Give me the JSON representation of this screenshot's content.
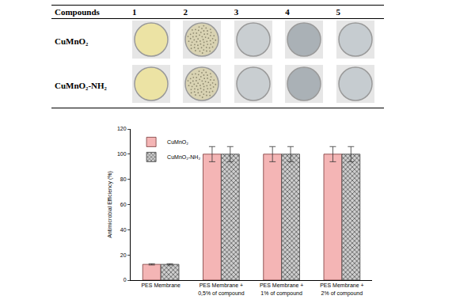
{
  "chart_data": {
    "type": "bar",
    "categories": [
      "PES Membrane",
      "PES Membrane + 0,5% of compound",
      "PES Membrane + 1% of compound",
      "PES Membrane + 2% of compound"
    ],
    "series": [
      {
        "name": "CuMnO₂",
        "color": "#f4b5b5",
        "values": [
          12.5,
          100,
          100,
          100
        ],
        "errors": [
          0.5,
          6,
          6,
          6
        ]
      },
      {
        "name": "CuMnO₂-NH₂",
        "color": "#cfcfcf",
        "marker": "crosshatch",
        "values": [
          12.5,
          100,
          100,
          100
        ],
        "errors": [
          0.5,
          6,
          6,
          6
        ]
      }
    ],
    "y_label": "Antimicrobial Efficiency (%)",
    "ylim": [
      0,
      120
    ],
    "yticks": [
      0,
      20,
      40,
      60,
      80,
      100,
      120
    ],
    "grid": false,
    "legend": "upper left"
  },
  "table": {
    "header": [
      "Compounds",
      "1",
      "2",
      "3",
      "4",
      "5"
    ],
    "rows": [
      "CuMnO₂",
      "CuMnO₂-NH₂"
    ]
  }
}
